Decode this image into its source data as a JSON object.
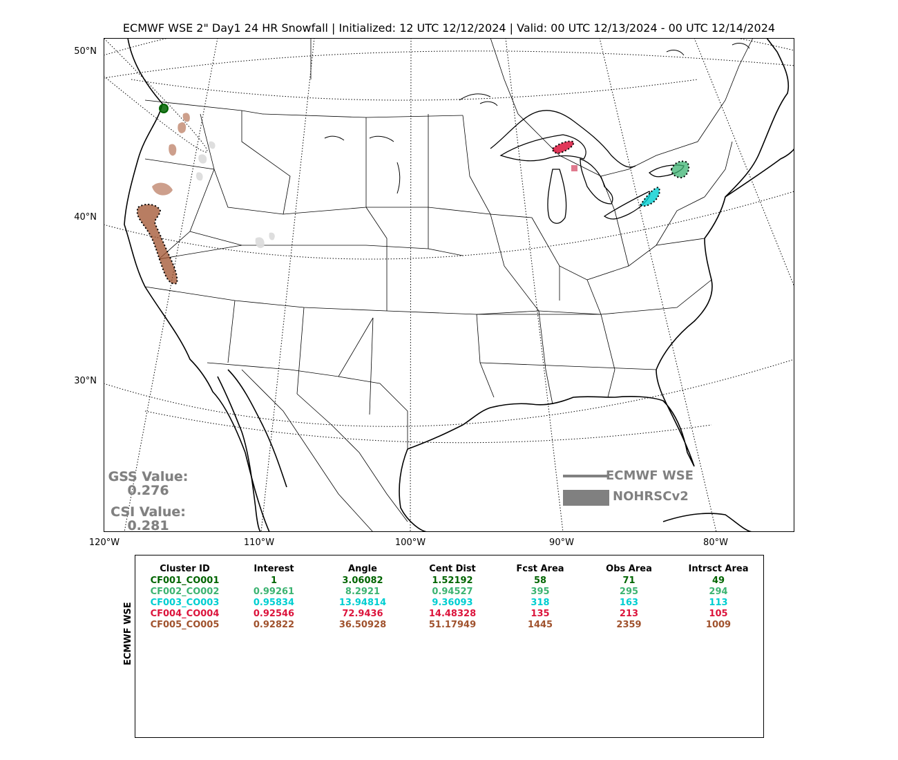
{
  "title": "ECMWF WSE 2\" Day1 24 HR Snowfall | Initialized: 12 UTC 12/12/2024 | Valid: 00 UTC 12/13/2024 - 00 UTC 12/14/2024",
  "latitude_labels": [
    "50°N",
    "40°N",
    "30°N"
  ],
  "longitude_labels": [
    "120°W",
    "110°W",
    "100°W",
    "90°W",
    "80°W"
  ],
  "scores": {
    "gss_label": "GSS Value:",
    "gss_value": "0.276",
    "csi_label": "CSI Value:",
    "csi_value": "0.281"
  },
  "legend": {
    "forecast_label": "ECMWF WSE",
    "observed_label": "NOHRSCv2",
    "color": "#808080"
  },
  "table": {
    "side_label": "ECMWF WSE",
    "columns": [
      "Cluster ID",
      "Interest",
      "Angle",
      "Cent Dist",
      "Fcst Area",
      "Obs Area",
      "Intrsct Area"
    ],
    "rows": [
      {
        "cells": [
          "CF001_CO001",
          "1",
          "3.06082",
          "1.52192",
          "58",
          "71",
          "49"
        ],
        "color": "#006400"
      },
      {
        "cells": [
          "CF002_CO002",
          "0.99261",
          "8.2921",
          "0.94527",
          "395",
          "295",
          "294"
        ],
        "color": "#3cb371"
      },
      {
        "cells": [
          "CF003_CO003",
          "0.95834",
          "13.94814",
          "9.36093",
          "318",
          "163",
          "113"
        ],
        "color": "#00ced1"
      },
      {
        "cells": [
          "CF004_CO004",
          "0.92546",
          "72.9436",
          "14.48328",
          "135",
          "213",
          "105"
        ],
        "color": "#dc143c"
      },
      {
        "cells": [
          "CF005_CO005",
          "0.92822",
          "36.50928",
          "51.17949",
          "1445",
          "2359",
          "1009"
        ],
        "color": "#a0522d"
      }
    ]
  },
  "clusters": [
    {
      "id": "CF001_CO001",
      "color": "#006400"
    },
    {
      "id": "CF002_CO002",
      "color": "#3cb371"
    },
    {
      "id": "CF003_CO003",
      "color": "#00ced1"
    },
    {
      "id": "CF004_CO004",
      "color": "#dc143c"
    },
    {
      "id": "CF005_CO005",
      "color": "#a0522d"
    }
  ]
}
